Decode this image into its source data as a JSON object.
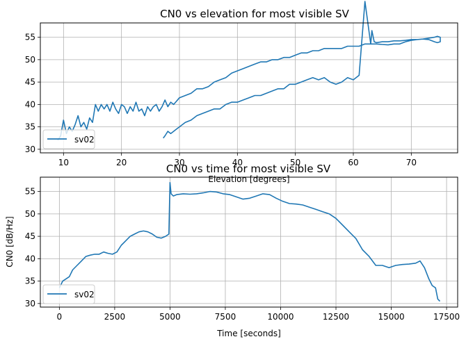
{
  "chart_data": [
    {
      "type": "line",
      "title": "CN0 vs elevation for most visible SV",
      "xlabel": "Elevation [degrees]",
      "ylabel": "",
      "xlim": [
        6,
        78
      ],
      "ylim": [
        29.2,
        58.2
      ],
      "xticks": [
        10,
        20,
        30,
        40,
        50,
        60,
        70
      ],
      "yticks": [
        30,
        35,
        40,
        45,
        50,
        55
      ],
      "grid": true,
      "legend": "lower-left",
      "color": "#1f77b4",
      "series": [
        {
          "name": "sv02",
          "x": [
            9,
            9.5,
            10,
            10.5,
            11,
            11.5,
            12,
            12.5,
            13,
            13.5,
            14,
            14.5,
            15,
            15.5,
            16,
            16.5,
            17,
            17.5,
            18,
            18.5,
            19,
            19.5,
            20,
            20.5,
            21,
            21.5,
            22,
            22.5,
            23,
            23.5,
            24,
            24.5,
            25,
            25.5,
            26,
            26.5,
            27,
            27.5,
            28,
            28.5,
            29,
            30,
            31,
            32,
            33,
            34,
            35,
            36,
            37,
            38,
            39,
            40,
            41,
            42,
            43,
            44,
            45,
            46,
            47,
            48,
            49,
            50,
            51,
            52,
            53,
            54,
            55,
            56,
            57,
            58,
            59,
            60,
            61,
            62,
            62.5,
            63,
            63.2,
            63.6,
            64,
            65,
            66,
            67,
            68,
            69,
            70,
            71,
            72,
            73,
            74,
            74.5,
            75,
            75,
            74.5,
            74,
            73,
            72,
            71,
            70,
            69,
            68,
            67,
            66,
            65,
            64,
            63,
            62,
            61,
            60,
            59,
            58,
            57,
            56,
            55,
            54,
            53,
            52,
            51,
            50,
            49,
            48,
            47,
            46,
            45,
            44,
            43,
            42,
            41,
            40,
            39,
            38,
            37,
            36,
            35,
            34,
            33,
            32,
            31,
            30,
            29.5,
            29,
            28.5,
            28,
            27.5,
            27.2
          ],
          "y": [
            32,
            33,
            36.5,
            33.5,
            35,
            34,
            35.5,
            37.5,
            35,
            36,
            34.5,
            37,
            36,
            40,
            38.5,
            40,
            39,
            40,
            38.5,
            40.5,
            39,
            38,
            40,
            39.5,
            38,
            39.5,
            38.5,
            40.5,
            38.5,
            39,
            37.5,
            39.5,
            38.5,
            39.5,
            40,
            38.5,
            39.5,
            41,
            39.5,
            40.5,
            40,
            41.5,
            42,
            42.5,
            43.5,
            43.5,
            44,
            45,
            45.5,
            46,
            47,
            47.5,
            48,
            48.5,
            49,
            49.5,
            49.5,
            50,
            50,
            50.5,
            50.5,
            51,
            51.5,
            51.5,
            52,
            52,
            52.5,
            52.5,
            52.5,
            52.5,
            53,
            53,
            53,
            53.5,
            53.5,
            53.5,
            56.5,
            54,
            53.8,
            54,
            54,
            54.2,
            54.2,
            54.3,
            54.5,
            54.5,
            54.6,
            54.8,
            55,
            55.2,
            55,
            54,
            53.8,
            54,
            54.5,
            54.6,
            54.5,
            54.3,
            54,
            53.5,
            53.5,
            53.3,
            53.4,
            53.5,
            53.5,
            63,
            46.5,
            45.5,
            46,
            45,
            44.5,
            45,
            46,
            45.5,
            46,
            45.5,
            45,
            44.5,
            44.5,
            43.5,
            43.5,
            43,
            42.5,
            42,
            42,
            41.5,
            41,
            40.5,
            40.5,
            40,
            39,
            39,
            38.5,
            38,
            37.5,
            36.5,
            36,
            35,
            34.5,
            34,
            33.5,
            34,
            33,
            32.5
          ],
          "_note_x_loop": ""
        }
      ]
    },
    {
      "type": "line",
      "title": "CN0 vs time for most visible SV",
      "xlabel": "Time [seconds]",
      "ylabel": "CN0 [dB/Hz]",
      "xlim": [
        -860,
        18000
      ],
      "ylim": [
        29.2,
        58.2
      ],
      "xticks": [
        0,
        2500,
        5000,
        7500,
        10000,
        12500,
        15000,
        17500
      ],
      "yticks": [
        30,
        35,
        40,
        45,
        50,
        55
      ],
      "grid": true,
      "legend": "lower-left",
      "color": "#1f77b4",
      "series": [
        {
          "name": "sv02",
          "x": [
            0,
            150,
            300,
            450,
            600,
            800,
            1000,
            1200,
            1400,
            1600,
            1800,
            2000,
            2200,
            2400,
            2600,
            2800,
            3000,
            3200,
            3400,
            3600,
            3800,
            4000,
            4200,
            4400,
            4600,
            4800,
            4950,
            5000,
            5050,
            5150,
            5300,
            5600,
            5900,
            6200,
            6500,
            6800,
            7100,
            7400,
            7700,
            8000,
            8300,
            8600,
            8900,
            9200,
            9500,
            9800,
            10100,
            10400,
            10700,
            11000,
            11300,
            11600,
            11900,
            12200,
            12500,
            12800,
            13100,
            13400,
            13700,
            14000,
            14300,
            14600,
            14900,
            15200,
            15500,
            15800,
            16100,
            16300,
            16500,
            16700,
            16850,
            17000,
            17100,
            17200
          ],
          "y": [
            33.5,
            35,
            35.5,
            36,
            37.5,
            38.5,
            39.5,
            40.5,
            40.8,
            41,
            41,
            41.5,
            41.2,
            41,
            41.5,
            43,
            44,
            45,
            45.5,
            46,
            46.2,
            46,
            45.5,
            44.8,
            44.6,
            45,
            45.5,
            57,
            54.5,
            54,
            54.3,
            54.5,
            54.4,
            54.5,
            54.7,
            55,
            54.9,
            54.5,
            54.3,
            53.8,
            53.3,
            53.5,
            54,
            54.5,
            54.3,
            53.5,
            52.8,
            52.3,
            52.2,
            52,
            51.5,
            51,
            50.5,
            50,
            49,
            47.5,
            46,
            44.5,
            42,
            40.5,
            38.5,
            38.5,
            38,
            38.5,
            38.7,
            38.8,
            39,
            39.5,
            38,
            35.5,
            34,
            33.5,
            31,
            30.5
          ]
        }
      ]
    }
  ]
}
